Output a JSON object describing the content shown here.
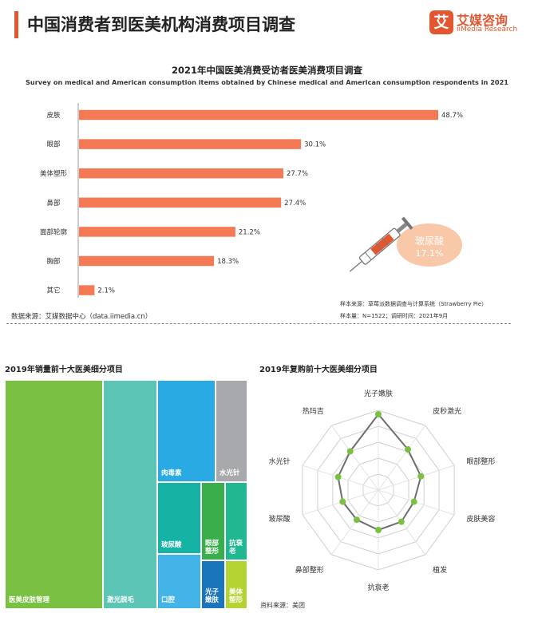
{
  "header": {
    "title": "中国消费者到医美机构消费项目调查",
    "logo_mark": "艾",
    "logo_cn": "艾媒咨询",
    "logo_en": "iiMedia Research"
  },
  "colors": {
    "accent": "#e2572f",
    "bar": "#f47a55",
    "bubble": "#f9c8a8",
    "radar_series": "#6e6e6e",
    "radar_point": "#7ac143"
  },
  "chart_data": [
    {
      "type": "bar",
      "orientation": "horizontal",
      "title": "2021年中国医美消费受访者医美消费项目调查",
      "subtitle": "Survey on medical and American consumption items obtained by Chinese medical and American consumption respondents in 2021",
      "categories": [
        "皮肤",
        "眼部",
        "美体塑形",
        "鼻部",
        "面部轮廓",
        "胸部",
        "其它"
      ],
      "values": [
        48.7,
        30.1,
        27.7,
        27.4,
        21.2,
        18.3,
        2.1
      ],
      "value_labels": [
        "48.7%",
        "30.1%",
        "27.7%",
        "27.4%",
        "21.2%",
        "18.3%",
        "2.1%"
      ],
      "unit": "%",
      "xlim": [
        0,
        50
      ],
      "callout": {
        "label": "玻尿酸",
        "value": "17.1%",
        "icon": "syringe-icon"
      },
      "notes": {
        "source": "样本来源：草莓派数据调查与计算系统（Strawberry Pie）",
        "sample": "样本量：N=1522；调研时间：2021年9月"
      },
      "data_source": "数据来源：艾媒数据中心（data.iimedia.cn）"
    },
    {
      "type": "treemap",
      "title": "2019年销量前十大医美细分项目",
      "items": [
        {
          "name": "医美皮肤管理",
          "color": "#7ac143"
        },
        {
          "name": "激光脱毛",
          "color": "#5dc5b5"
        },
        {
          "name": "肉毒素",
          "color": "#29aae2"
        },
        {
          "name": "水光针",
          "color": "#a7a9ac"
        },
        {
          "name": "玻尿酸",
          "color": "#14b3a4"
        },
        {
          "name": "眼部整形",
          "color": "#3aae4a"
        },
        {
          "name": "抗衰老",
          "color": "#1fb891"
        },
        {
          "name": "口腔",
          "color": "#44b4e8"
        },
        {
          "name": "光子嫩肤",
          "color": "#1b75bb"
        },
        {
          "name": "美体塑形",
          "color": "#b6d334"
        }
      ]
    },
    {
      "type": "radar",
      "title": "2019年复购前十大医美细分项目",
      "axes": [
        "光子嫩肤",
        "皮秒激光",
        "眼部整形",
        "皮肤美容",
        "植发",
        "抗衰老",
        "鼻部整形",
        "玻尿酸",
        "水光针",
        "热玛吉"
      ],
      "series": [
        {
          "values": [
            0.95,
            0.63,
            0.56,
            0.47,
            0.49,
            0.5,
            0.46,
            0.47,
            0.53,
            0.6
          ]
        }
      ],
      "rlim": [
        0,
        1
      ],
      "grid": true,
      "source": "资料来源：美团"
    }
  ]
}
